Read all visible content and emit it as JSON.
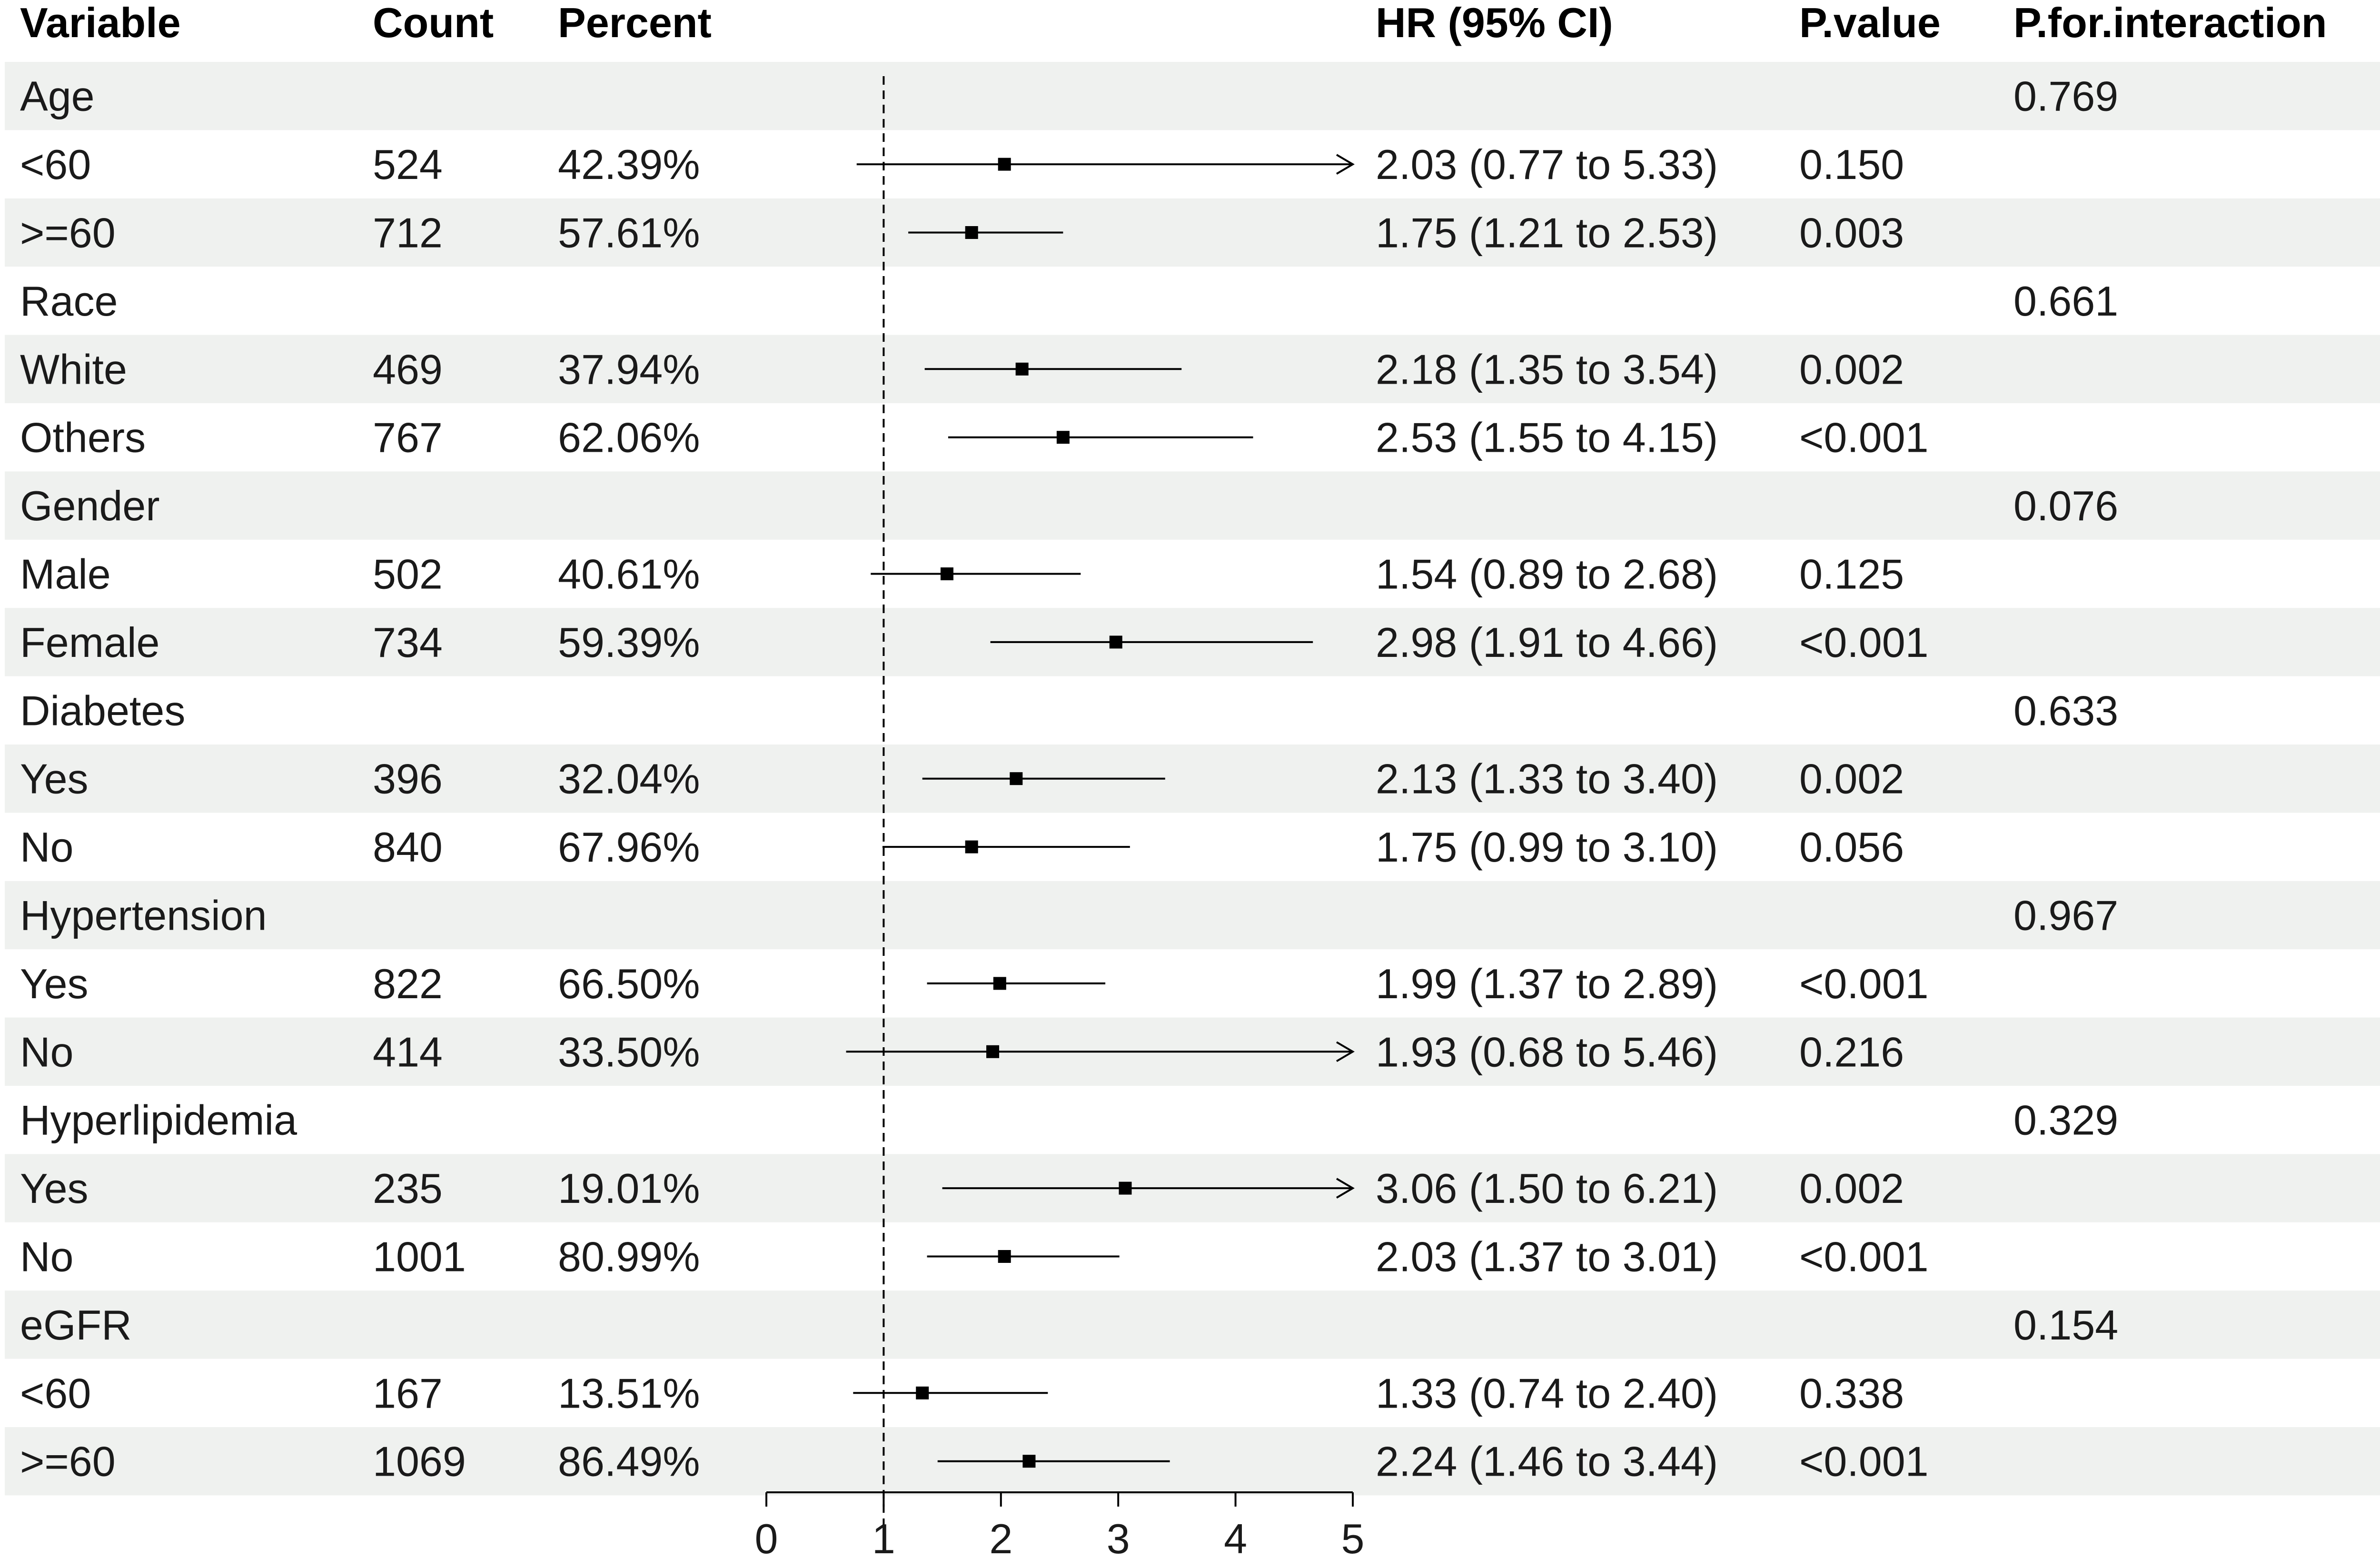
{
  "headers": {
    "variable": "Variable",
    "count": "Count",
    "percent": "Percent",
    "hr": "HR (95% CI)",
    "pvalue": "P.value",
    "pinteraction": "P.for.interaction"
  },
  "colors": {
    "stripe": "#eff1ef",
    "text": "#1a1a1a",
    "line": "#000000"
  },
  "chart_data": {
    "type": "forest",
    "reference_line": 1,
    "reference_line_style": "dashed",
    "xlim": [
      0,
      5
    ],
    "xticks": [
      "0",
      "1",
      "2",
      "3",
      "4",
      "5"
    ],
    "rows": [
      {
        "label": "Age",
        "group": true,
        "p_interaction": "0.769"
      },
      {
        "label": "<60",
        "count": "524",
        "percent": "42.39%",
        "hr": 2.03,
        "lo": 0.77,
        "hi": 5.33,
        "hr_text": "2.03 (0.77 to 5.33)",
        "p": "0.150"
      },
      {
        "label": ">=60",
        "count": "712",
        "percent": "57.61%",
        "hr": 1.75,
        "lo": 1.21,
        "hi": 2.53,
        "hr_text": "1.75 (1.21 to 2.53)",
        "p": "0.003"
      },
      {
        "label": "Race",
        "group": true,
        "p_interaction": "0.661"
      },
      {
        "label": "White",
        "count": "469",
        "percent": "37.94%",
        "hr": 2.18,
        "lo": 1.35,
        "hi": 3.54,
        "hr_text": "2.18 (1.35 to 3.54)",
        "p": "0.002"
      },
      {
        "label": "Others",
        "count": "767",
        "percent": "62.06%",
        "hr": 2.53,
        "lo": 1.55,
        "hi": 4.15,
        "hr_text": "2.53 (1.55 to 4.15)",
        "p": "<0.001"
      },
      {
        "label": "Gender",
        "group": true,
        "p_interaction": "0.076"
      },
      {
        "label": "Male",
        "count": "502",
        "percent": "40.61%",
        "hr": 1.54,
        "lo": 0.89,
        "hi": 2.68,
        "hr_text": "1.54 (0.89 to 2.68)",
        "p": "0.125"
      },
      {
        "label": "Female",
        "count": "734",
        "percent": "59.39%",
        "hr": 2.98,
        "lo": 1.91,
        "hi": 4.66,
        "hr_text": "2.98 (1.91 to 4.66)",
        "p": "<0.001"
      },
      {
        "label": "Diabetes",
        "group": true,
        "p_interaction": "0.633"
      },
      {
        "label": "Yes",
        "count": "396",
        "percent": "32.04%",
        "hr": 2.13,
        "lo": 1.33,
        "hi": 3.4,
        "hr_text": "2.13 (1.33 to 3.40)",
        "p": "0.002"
      },
      {
        "label": "No",
        "count": "840",
        "percent": "67.96%",
        "hr": 1.75,
        "lo": 0.99,
        "hi": 3.1,
        "hr_text": "1.75 (0.99 to 3.10)",
        "p": "0.056"
      },
      {
        "label": "Hypertension",
        "group": true,
        "p_interaction": "0.967"
      },
      {
        "label": "Yes",
        "count": "822",
        "percent": "66.50%",
        "hr": 1.99,
        "lo": 1.37,
        "hi": 2.89,
        "hr_text": "1.99 (1.37 to 2.89)",
        "p": "<0.001"
      },
      {
        "label": "No",
        "count": "414",
        "percent": "33.50%",
        "hr": 1.93,
        "lo": 0.68,
        "hi": 5.46,
        "hr_text": "1.93 (0.68 to 5.46)",
        "p": "0.216"
      },
      {
        "label": "Hyperlipidemia",
        "group": true,
        "p_interaction": "0.329"
      },
      {
        "label": "Yes",
        "count": "235",
        "percent": "19.01%",
        "hr": 3.06,
        "lo": 1.5,
        "hi": 6.21,
        "hr_text": "3.06 (1.50 to 6.21)",
        "p": "0.002"
      },
      {
        "label": "No",
        "count": "1001",
        "percent": "80.99%",
        "hr": 2.03,
        "lo": 1.37,
        "hi": 3.01,
        "hr_text": "2.03 (1.37 to 3.01)",
        "p": "<0.001"
      },
      {
        "label": "eGFR",
        "group": true,
        "p_interaction": "0.154"
      },
      {
        "label": "<60",
        "count": "167",
        "percent": "13.51%",
        "hr": 1.33,
        "lo": 0.74,
        "hi": 2.4,
        "hr_text": "1.33 (0.74 to 2.40)",
        "p": "0.338"
      },
      {
        "label": ">=60",
        "count": "1069",
        "percent": "86.49%",
        "hr": 2.24,
        "lo": 1.46,
        "hi": 3.44,
        "hr_text": "2.24 (1.46 to 3.44)",
        "p": "<0.001"
      }
    ]
  }
}
